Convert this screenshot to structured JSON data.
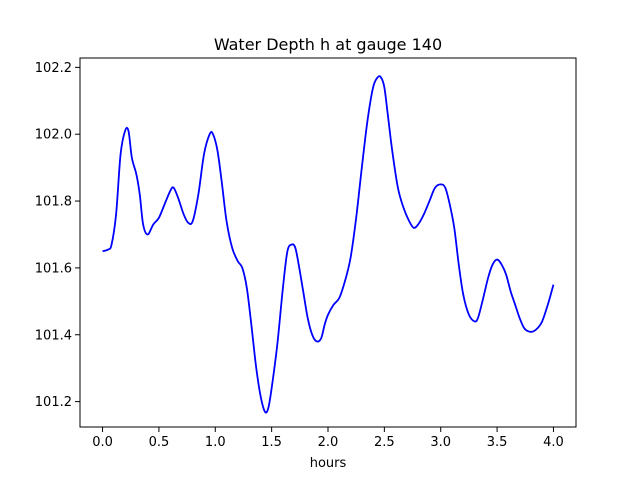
{
  "chart_data": {
    "type": "line",
    "title": "Water Depth h at gauge 140",
    "xlabel": "hours",
    "ylabel": "",
    "xlim": [
      -0.2,
      4.2
    ],
    "ylim": [
      101.124,
      102.228
    ],
    "x_ticks": [
      0.0,
      0.5,
      1.0,
      1.5,
      2.0,
      2.5,
      3.0,
      3.5,
      4.0
    ],
    "x_tick_labels": [
      "0.0",
      "0.5",
      "1.0",
      "1.5",
      "2.0",
      "2.5",
      "3.0",
      "3.5",
      "4.0"
    ],
    "y_ticks": [
      101.2,
      101.4,
      101.6,
      101.8,
      102.0,
      102.2
    ],
    "y_tick_labels": [
      "101.2",
      "101.4",
      "101.6",
      "101.8",
      "102.0",
      "102.2"
    ],
    "grid": false,
    "series": [
      {
        "color": "#0000ff",
        "x": [
          0.0,
          0.05,
          0.08,
          0.12,
          0.16,
          0.2,
          0.23,
          0.26,
          0.3,
          0.33,
          0.36,
          0.4,
          0.45,
          0.5,
          0.55,
          0.6,
          0.63,
          0.67,
          0.72,
          0.76,
          0.8,
          0.85,
          0.9,
          0.95,
          0.98,
          1.02,
          1.06,
          1.1,
          1.15,
          1.2,
          1.24,
          1.28,
          1.32,
          1.36,
          1.4,
          1.44,
          1.47,
          1.5,
          1.55,
          1.6,
          1.64,
          1.68,
          1.71,
          1.74,
          1.78,
          1.82,
          1.86,
          1.9,
          1.94,
          1.97,
          2.0,
          2.05,
          2.1,
          2.15,
          2.2,
          2.25,
          2.3,
          2.35,
          2.4,
          2.44,
          2.47,
          2.5,
          2.53,
          2.57,
          2.62,
          2.67,
          2.72,
          2.76,
          2.8,
          2.85,
          2.9,
          2.95,
          3.0,
          3.04,
          3.08,
          3.12,
          3.16,
          3.2,
          3.25,
          3.3,
          3.33,
          3.37,
          3.42,
          3.46,
          3.5,
          3.54,
          3.58,
          3.62,
          3.66,
          3.7,
          3.74,
          3.78,
          3.82,
          3.86,
          3.9,
          3.95,
          4.0
        ],
        "y": [
          101.65,
          101.655,
          101.67,
          101.76,
          101.94,
          102.01,
          102.01,
          101.93,
          101.88,
          101.82,
          101.73,
          101.7,
          101.73,
          101.75,
          101.79,
          101.83,
          101.84,
          101.81,
          101.76,
          101.735,
          101.74,
          101.82,
          101.94,
          102.0,
          102.0,
          101.95,
          101.85,
          101.74,
          101.66,
          101.62,
          101.6,
          101.54,
          101.43,
          101.31,
          101.22,
          101.17,
          101.18,
          101.24,
          101.37,
          101.54,
          101.65,
          101.67,
          101.66,
          101.61,
          101.53,
          101.45,
          101.4,
          101.38,
          101.39,
          101.43,
          101.46,
          101.49,
          101.51,
          101.56,
          101.63,
          101.75,
          101.9,
          102.04,
          102.14,
          102.17,
          102.17,
          102.14,
          102.06,
          101.95,
          101.84,
          101.78,
          101.74,
          101.72,
          101.73,
          101.76,
          101.8,
          101.84,
          101.85,
          101.84,
          101.79,
          101.72,
          101.61,
          101.52,
          101.46,
          101.44,
          101.45,
          101.5,
          101.57,
          101.61,
          101.625,
          101.61,
          101.58,
          101.53,
          101.49,
          101.45,
          101.42,
          101.41,
          101.41,
          101.42,
          101.44,
          101.49,
          101.55
        ]
      }
    ]
  }
}
